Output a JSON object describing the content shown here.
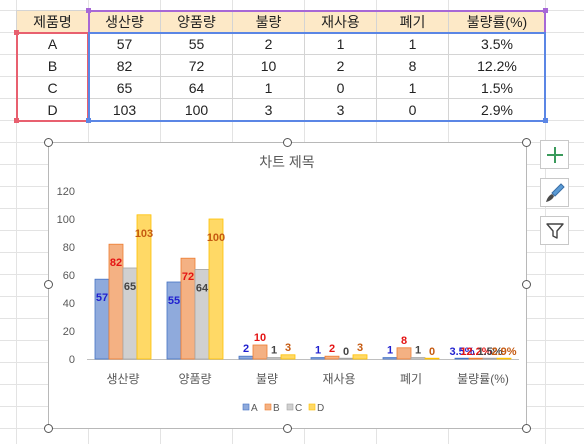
{
  "table": {
    "headers": [
      "제품명",
      "생산량",
      "양품량",
      "불량",
      "재사용",
      "폐기",
      "불량률(%)"
    ],
    "rows": [
      [
        "A",
        "57",
        "55",
        "2",
        "1",
        "1",
        "3.5%"
      ],
      [
        "B",
        "82",
        "72",
        "10",
        "2",
        "8",
        "12.2%"
      ],
      [
        "C",
        "65",
        "64",
        "1",
        "0",
        "1",
        "1.5%"
      ],
      [
        "D",
        "103",
        "100",
        "3",
        "3",
        "0",
        "2.9%"
      ]
    ]
  },
  "chart_data": {
    "type": "bar",
    "title": "차트 제목",
    "categories": [
      "생산량",
      "양품량",
      "불량",
      "재사용",
      "폐기",
      "불량률(%)"
    ],
    "series": [
      {
        "name": "A",
        "values": [
          57,
          55,
          2,
          1,
          1,
          0.035
        ],
        "labels": [
          "57",
          "55",
          "2",
          "1",
          "1",
          "3.5%"
        ],
        "color": "#8faadc",
        "stroke": "#4472c4",
        "label_color": "#1f1fcf"
      },
      {
        "name": "B",
        "values": [
          82,
          72,
          10,
          2,
          8,
          0.122
        ],
        "labels": [
          "82",
          "72",
          "10",
          "2",
          "8",
          "12.2%"
        ],
        "color": "#f4b183",
        "stroke": "#ed7d31",
        "label_color": "#e41414"
      },
      {
        "name": "C",
        "values": [
          65,
          64,
          1,
          0,
          1,
          0.015
        ],
        "labels": [
          "65",
          "64",
          "1",
          "0",
          "1",
          "1.5%"
        ],
        "color": "#d0d0d0",
        "stroke": "#a5a5a5",
        "label_color": "#444444"
      },
      {
        "name": "D",
        "values": [
          103,
          100,
          3,
          3,
          0,
          0.029
        ],
        "labels": [
          "103",
          "100",
          "3",
          "3",
          "0",
          "2.9%"
        ],
        "color": "#ffd966",
        "stroke": "#ffc000",
        "label_color": "#c55a11"
      }
    ],
    "ylim": [
      0,
      120
    ],
    "yticks": [
      "0",
      "20",
      "40",
      "60",
      "80",
      "100",
      "120"
    ],
    "grid": false,
    "legend": "bottom"
  },
  "side_buttons": {
    "add": "plus-icon",
    "style": "brush-icon",
    "filter": "filter-icon"
  }
}
